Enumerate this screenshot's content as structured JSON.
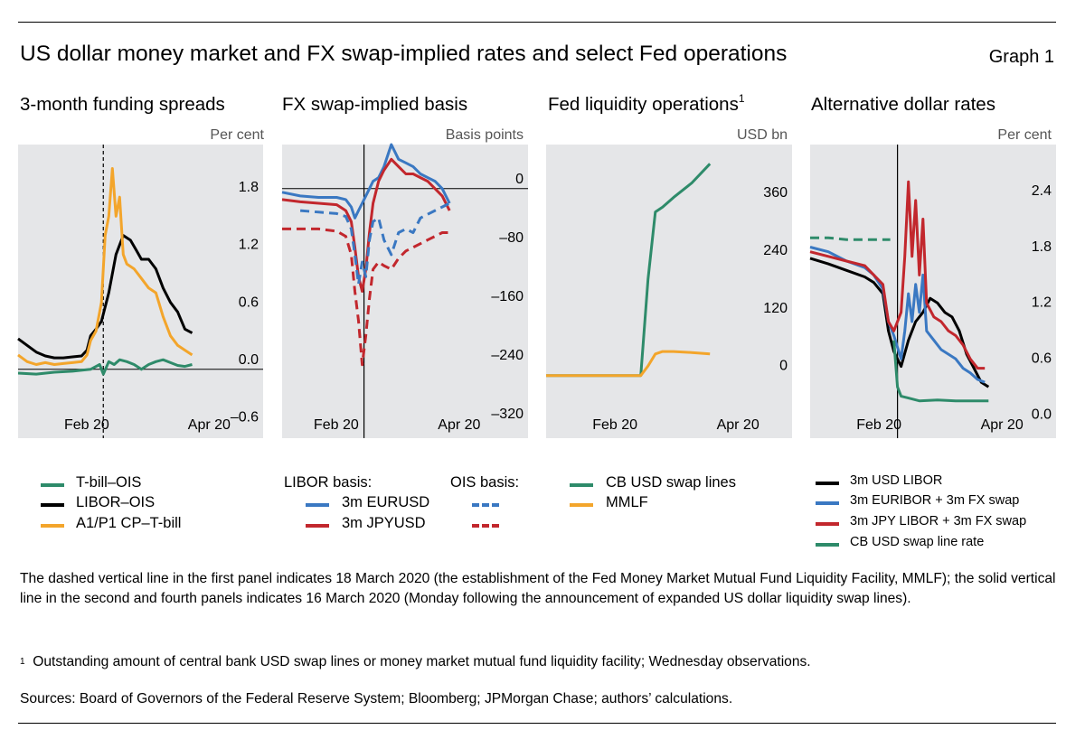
{
  "header": {
    "title": "US dollar money market and FX swap-implied rates and select Fed operations",
    "graph_label": "Graph 1"
  },
  "colors": {
    "green": "#2e8b6a",
    "black": "#000000",
    "orange": "#f3a52b",
    "blue": "#3a78c2",
    "red": "#c2272d",
    "panel_bg": "#e5e6e8"
  },
  "chart_data": [
    {
      "type": "line",
      "id": "p1",
      "title": "3-month funding spreads",
      "unit": "Per cent",
      "x_ticks": [
        "Feb 20",
        "Apr 20"
      ],
      "y_ticks": [
        "1.8",
        "1.2",
        "0.6",
        "0.0",
        "–0.6"
      ],
      "y_tick_values": [
        1.8,
        1.2,
        0.6,
        0.0,
        -0.6
      ],
      "ylim": [
        -0.72,
        2.35
      ],
      "xlim": [
        0,
        100
      ],
      "zero_line": true,
      "vline": {
        "x": 47,
        "style": "dashed"
      },
      "series": [
        {
          "name": "T-bill–OIS",
          "color": "green",
          "style": "solid",
          "x": [
            0,
            10,
            20,
            30,
            40,
            45,
            47,
            50,
            53,
            56,
            60,
            64,
            68,
            72,
            76,
            80,
            84,
            88,
            92,
            96
          ],
          "y": [
            -0.04,
            -0.05,
            -0.03,
            -0.02,
            0.0,
            0.05,
            -0.05,
            0.08,
            0.05,
            0.1,
            0.08,
            0.05,
            0.0,
            0.05,
            0.08,
            0.1,
            0.07,
            0.04,
            0.03,
            0.05
          ]
        },
        {
          "name": "LIBOR–OIS",
          "color": "black",
          "style": "solid",
          "x": [
            0,
            5,
            10,
            15,
            20,
            25,
            30,
            35,
            38,
            40,
            43,
            46,
            50,
            54,
            58,
            62,
            65,
            68,
            72,
            76,
            80,
            84,
            88,
            92,
            96
          ],
          "y": [
            0.32,
            0.25,
            0.18,
            0.14,
            0.12,
            0.12,
            0.13,
            0.14,
            0.2,
            0.35,
            0.42,
            0.5,
            0.8,
            1.2,
            1.4,
            1.35,
            1.25,
            1.15,
            1.15,
            1.05,
            0.85,
            0.7,
            0.6,
            0.42,
            0.38
          ]
        },
        {
          "name": "A1/P1 CP–T-bill",
          "color": "orange",
          "style": "solid",
          "x": [
            0,
            5,
            10,
            15,
            20,
            25,
            30,
            35,
            38,
            40,
            43,
            46,
            48,
            50,
            52,
            54,
            56,
            58,
            60,
            64,
            68,
            72,
            76,
            80,
            84,
            88,
            92,
            96
          ],
          "y": [
            0.15,
            0.08,
            0.05,
            0.07,
            0.05,
            0.06,
            0.07,
            0.08,
            0.15,
            0.3,
            0.4,
            0.7,
            1.4,
            1.6,
            2.1,
            1.6,
            1.8,
            1.2,
            1.1,
            1.05,
            0.95,
            0.85,
            0.8,
            0.55,
            0.35,
            0.25,
            0.2,
            0.15
          ]
        }
      ]
    },
    {
      "type": "line",
      "id": "p2",
      "title": "FX swap-implied basis",
      "unit": "Basis points",
      "x_ticks": [
        "Feb 20",
        "Apr 20"
      ],
      "y_ticks": [
        "0",
        "–80",
        "–160",
        "–240",
        "–320"
      ],
      "y_tick_values": [
        0,
        -80,
        -160,
        -240,
        -320
      ],
      "ylim": [
        -340,
        60
      ],
      "xlim": [
        0,
        100
      ],
      "zero_line": true,
      "vline": {
        "x": 45,
        "style": "solid"
      },
      "series": [
        {
          "name": "3m EURUSD (LIBOR basis)",
          "color": "blue",
          "style": "solid",
          "x": [
            0,
            10,
            20,
            30,
            35,
            38,
            40,
            42,
            44,
            46,
            48,
            50,
            53,
            56,
            60,
            64,
            68,
            72,
            76,
            80,
            84,
            88,
            92
          ],
          "y": [
            -5,
            -10,
            -12,
            -12,
            -15,
            -25,
            -40,
            -30,
            -20,
            -10,
            0,
            10,
            15,
            30,
            60,
            40,
            35,
            30,
            20,
            15,
            10,
            0,
            -20
          ]
        },
        {
          "name": "3m JPYUSD (LIBOR basis)",
          "color": "red",
          "style": "solid",
          "x": [
            0,
            10,
            20,
            30,
            35,
            38,
            40,
            42,
            44,
            46,
            48,
            50,
            53,
            56,
            60,
            64,
            68,
            72,
            76,
            80,
            84,
            88,
            92
          ],
          "y": [
            -15,
            -18,
            -20,
            -22,
            -30,
            -45,
            -80,
            -120,
            -140,
            -110,
            -60,
            -20,
            10,
            25,
            40,
            30,
            20,
            20,
            15,
            10,
            0,
            -10,
            -30
          ]
        },
        {
          "name": "3m EURUSD (OIS basis)",
          "color": "blue",
          "style": "dashed",
          "x": [
            10,
            20,
            30,
            35,
            38,
            40,
            42,
            44,
            46,
            48,
            50,
            53,
            56,
            60,
            64,
            68,
            72,
            76,
            80,
            84,
            88,
            92
          ],
          "y": [
            -30,
            -32,
            -34,
            -38,
            -55,
            -90,
            -130,
            -100,
            -120,
            -70,
            -45,
            -40,
            -70,
            -90,
            -60,
            -55,
            -60,
            -40,
            -35,
            -30,
            -25,
            -20
          ]
        },
        {
          "name": "3m JPYUSD (OIS basis)",
          "color": "red",
          "style": "dashed",
          "x": [
            0,
            10,
            20,
            30,
            35,
            38,
            40,
            42,
            44,
            46,
            48,
            50,
            53,
            56,
            60,
            64,
            68,
            72,
            76,
            80,
            84,
            88,
            92
          ],
          "y": [
            -55,
            -55,
            -55,
            -58,
            -65,
            -90,
            -140,
            -180,
            -240,
            -200,
            -150,
            -110,
            -100,
            -105,
            -110,
            -95,
            -85,
            -80,
            -75,
            -70,
            -65,
            -60,
            -60
          ]
        }
      ]
    },
    {
      "type": "line",
      "id": "p3",
      "title": "Fed liquidity operations",
      "title_sup": "1",
      "unit": "USD bn",
      "x_ticks": [
        "Feb 20",
        "Apr 20"
      ],
      "y_ticks": [
        "360",
        "240",
        "120",
        "0"
      ],
      "y_tick_values": [
        360,
        240,
        120,
        0
      ],
      "ylim": [
        -130,
        480
      ],
      "xlim": [
        0,
        100
      ],
      "zero_line": false,
      "series": [
        {
          "name": "CB USD swap lines",
          "color": "green",
          "style": "solid",
          "x": [
            0,
            10,
            20,
            30,
            40,
            48,
            52,
            56,
            60,
            64,
            70,
            80,
            90
          ],
          "y": [
            0,
            0,
            0,
            0,
            0,
            0,
            0,
            200,
            340,
            350,
            370,
            400,
            440
          ]
        },
        {
          "name": "MMLF",
          "color": "orange",
          "style": "solid",
          "x": [
            0,
            10,
            20,
            30,
            40,
            48,
            52,
            56,
            60,
            64,
            70,
            80,
            90
          ],
          "y": [
            0,
            0,
            0,
            0,
            0,
            0,
            0,
            20,
            45,
            50,
            50,
            48,
            45
          ]
        }
      ]
    },
    {
      "type": "line",
      "id": "p4",
      "title": "Alternative dollar rates",
      "unit": "Per cent",
      "x_ticks": [
        "Feb 20",
        "Apr 20"
      ],
      "y_ticks": [
        "2.4",
        "1.8",
        "1.2",
        "0.6",
        "0.0"
      ],
      "y_tick_values": [
        2.4,
        1.8,
        1.2,
        0.6,
        0.0
      ],
      "ylim": [
        -0.15,
        3.0
      ],
      "xlim": [
        0,
        100
      ],
      "zero_line": false,
      "vline": {
        "x": 48,
        "style": "solid"
      },
      "series": [
        {
          "name": "3m USD LIBOR",
          "color": "black",
          "style": "solid",
          "x": [
            0,
            10,
            20,
            30,
            35,
            40,
            43,
            46,
            50,
            54,
            58,
            62,
            66,
            70,
            74,
            78,
            82,
            86,
            90,
            94,
            98
          ],
          "y": [
            1.78,
            1.72,
            1.65,
            1.58,
            1.52,
            1.4,
            1.0,
            0.78,
            0.62,
            0.9,
            1.1,
            1.2,
            1.35,
            1.3,
            1.2,
            1.15,
            1.0,
            0.75,
            0.6,
            0.45,
            0.4
          ]
        },
        {
          "name": "3m EURIBOR + 3m FX swap",
          "color": "blue",
          "style": "solid",
          "x": [
            0,
            10,
            20,
            30,
            35,
            40,
            43,
            46,
            50,
            52,
            54,
            56,
            58,
            60,
            62,
            64,
            68,
            72,
            76,
            80,
            84,
            88,
            92,
            96
          ],
          "y": [
            1.9,
            1.85,
            1.75,
            1.68,
            1.6,
            1.45,
            1.1,
            0.95,
            0.7,
            1.0,
            1.4,
            1.1,
            1.5,
            1.2,
            1.6,
            1.0,
            0.9,
            0.8,
            0.75,
            0.7,
            0.6,
            0.55,
            0.48,
            0.45
          ]
        },
        {
          "name": "3m JPY LIBOR + 3m FX swap",
          "color": "red",
          "style": "solid",
          "x": [
            0,
            10,
            20,
            30,
            35,
            40,
            43,
            46,
            50,
            52,
            54,
            56,
            58,
            60,
            62,
            64,
            68,
            72,
            76,
            80,
            84,
            88,
            92,
            96
          ],
          "y": [
            1.85,
            1.8,
            1.75,
            1.7,
            1.6,
            1.5,
            1.1,
            1.0,
            1.2,
            1.8,
            2.6,
            1.8,
            2.4,
            1.6,
            2.2,
            1.3,
            1.15,
            1.1,
            1.0,
            0.95,
            0.85,
            0.7,
            0.6,
            0.6
          ]
        },
        {
          "name": "CB USD swap line rate",
          "color": "green",
          "style": "dashed",
          "x": [
            0,
            10,
            20,
            30,
            40,
            44
          ],
          "y": [
            2.0,
            2.0,
            1.98,
            1.98,
            1.98,
            1.98
          ]
        },
        {
          "name": "CB USD swap line rate (post)",
          "color": "green",
          "style": "solid",
          "x": [
            46,
            48,
            50,
            54,
            60,
            70,
            80,
            90,
            98
          ],
          "y": [
            0.9,
            0.4,
            0.3,
            0.28,
            0.25,
            0.26,
            0.25,
            0.25,
            0.25
          ]
        }
      ]
    }
  ],
  "legends": {
    "p1": [
      "T-bill–OIS",
      "LIBOR–OIS",
      "A1/P1 CP–T-bill"
    ],
    "p2": {
      "libor_header": "LIBOR basis:",
      "ois_header": "OIS basis:",
      "rows": [
        "3m EURUSD",
        "3m JPYUSD"
      ]
    },
    "p3": [
      "CB USD swap lines",
      "MMLF"
    ],
    "p4": [
      "3m USD LIBOR",
      "3m EURIBOR + 3m FX swap",
      "3m JPY LIBOR + 3m FX swap",
      "CB USD swap line rate"
    ]
  },
  "notes": {
    "main": "The dashed vertical line in the first panel indicates 18 March 2020 (the establishment of the Fed Money Market Mutual Fund Liquidity Facility, MMLF); the solid vertical line in the second and fourth panels indicates 16 March 2020 (Monday following the announcement of expanded US dollar liquidity swap lines).",
    "footnote_num": "1",
    "footnote": "Outstanding amount of central bank USD swap lines or money market mutual fund liquidity facility; Wednesday observations.",
    "sources": "Sources: Board of Governors of the Federal Reserve System; Bloomberg; JPMorgan Chase; authors’ calculations."
  }
}
